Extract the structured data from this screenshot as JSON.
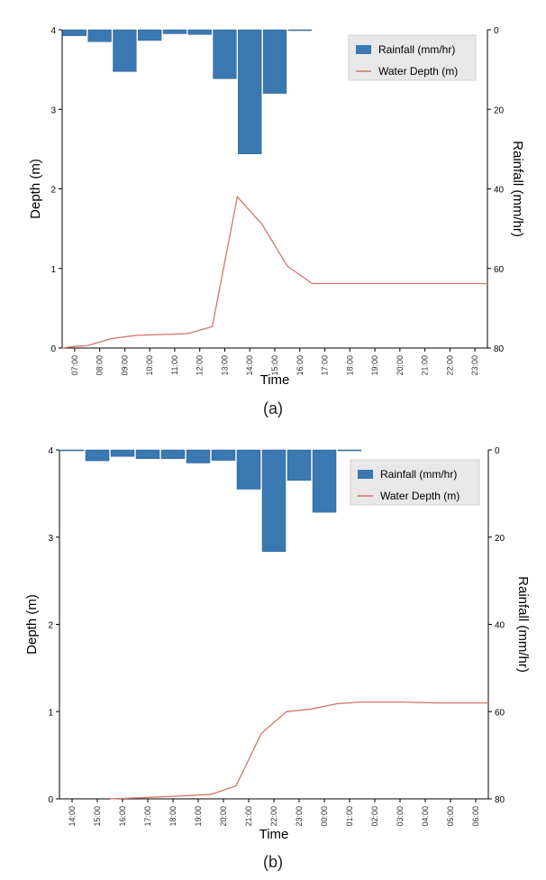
{
  "chart_data": [
    {
      "type": "bar+line",
      "panel_label": "(a)",
      "xlabel": "Time",
      "ylabel_left": "Depth (m)",
      "ylabel_right": "Rainfall (mm/hr)",
      "ylim_left": [
        0,
        4
      ],
      "ylim_right_inverted": [
        80,
        0
      ],
      "left_ticks": [
        "0",
        "1",
        "2",
        "3",
        "4"
      ],
      "right_ticks": [
        "80",
        "60",
        "40",
        "20",
        "0"
      ],
      "categories": [
        "07:00",
        "08:00",
        "09:00",
        "10:00",
        "11:00",
        "12:00",
        "13:00",
        "14:00",
        "15:00",
        "16:00",
        "17:00",
        "18:00",
        "19:00",
        "20:00",
        "21:00",
        "22:00",
        "23:00"
      ],
      "legend": {
        "placement": "top-right",
        "rain": "Rainfall  (mm/hr)",
        "depth": "Water  Depth  (m)"
      },
      "colors": {
        "bars": "#3a78b2",
        "line": "#d2746a"
      },
      "series": [
        {
          "name": "Rainfall  (mm/hr)",
          "axis": "right",
          "kind": "bar",
          "values": [
            1.5,
            3,
            10.5,
            2.7,
            1,
            1.2,
            12.3,
            31.2,
            16,
            0.2,
            0,
            0,
            0,
            0,
            0,
            0,
            0
          ]
        },
        {
          "name": "Water  Depth  (m)",
          "axis": "left",
          "kind": "line",
          "points": [
            [
              -0.5,
              0
            ],
            [
              0,
              0.02
            ],
            [
              0.5,
              0.03
            ],
            [
              1.5,
              0.12
            ],
            [
              2.5,
              0.16
            ],
            [
              4.5,
              0.18
            ],
            [
              5.5,
              0.27
            ],
            [
              6.5,
              1.9
            ],
            [
              7.5,
              1.55
            ],
            [
              8.5,
              1.03
            ],
            [
              9.5,
              0.81
            ],
            [
              16.5,
              0.81
            ]
          ]
        }
      ]
    },
    {
      "type": "bar+line",
      "panel_label": "(b)",
      "xlabel": "Time",
      "ylabel_left": "Depth (m)",
      "ylabel_right": "Rainfall (mm/hr)",
      "ylim_left": [
        0,
        4
      ],
      "ylim_right_inverted": [
        80,
        0
      ],
      "left_ticks": [
        "0",
        "1",
        "2",
        "3",
        "4"
      ],
      "right_ticks": [
        "80",
        "60",
        "40",
        "20",
        "0"
      ],
      "categories": [
        "14:00",
        "15:00",
        "16:00",
        "17:00",
        "18:00",
        "19:00",
        "20:00",
        "21:00",
        "22:00",
        "23:00",
        "00:00",
        "01:00",
        "02:00",
        "03:00",
        "04:00",
        "05:00",
        "06:00"
      ],
      "legend": {
        "placement": "top-right",
        "rain": "Rainfall  (mm/hr)",
        "depth": "Water  Depth  (m)"
      },
      "colors": {
        "bars": "#3a78b2",
        "line": "#d2746a"
      },
      "series": [
        {
          "name": "Rainfall  (mm/hr)",
          "axis": "right",
          "kind": "bar",
          "values": [
            0.2,
            2.5,
            1.5,
            2,
            2,
            3,
            2.4,
            9,
            23.3,
            7,
            14.3,
            0.1,
            0,
            0,
            0,
            0,
            0
          ]
        },
        {
          "name": "Water  Depth  (m)",
          "axis": "left",
          "kind": "line",
          "points": [
            [
              1.5,
              0
            ],
            [
              2.5,
              0.01
            ],
            [
              4,
              0.03
            ],
            [
              5.5,
              0.05
            ],
            [
              6.5,
              0.15
            ],
            [
              7.5,
              0.75
            ],
            [
              8.5,
              1
            ],
            [
              9.5,
              1.03
            ],
            [
              10.5,
              1.09
            ],
            [
              11.5,
              1.11
            ],
            [
              13,
              1.11
            ],
            [
              14.5,
              1.1
            ],
            [
              16.5,
              1.1
            ]
          ]
        }
      ]
    }
  ]
}
